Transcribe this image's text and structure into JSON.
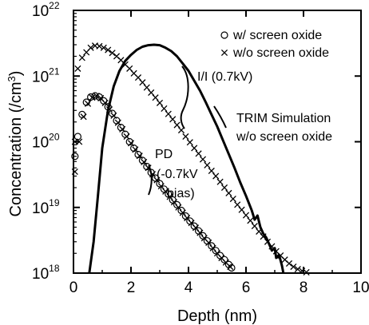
{
  "chart_data": {
    "type": "scatter",
    "title": "",
    "xlabel": "Depth (nm)",
    "ylabel_parts": {
      "main": "Concentration (/cm",
      "sup": "3",
      "close": ")"
    },
    "xlim": [
      0,
      10
    ],
    "ylim": [
      1e+18,
      1e+22
    ],
    "yscale": "log",
    "grid": false,
    "legend_placement": "top-right",
    "x_ticks": [
      "0",
      "2",
      "4",
      "6",
      "8",
      "10"
    ],
    "y_ticks": [
      {
        "base": "10",
        "exp": "18",
        "value": 1e+18
      },
      {
        "base": "10",
        "exp": "19",
        "value": 1e+19
      },
      {
        "base": "10",
        "exp": "20",
        "value": 1e+20
      },
      {
        "base": "10",
        "exp": "21",
        "value": 1e+21
      },
      {
        "base": "10",
        "exp": "22",
        "value": 1e+22
      }
    ],
    "legend": [
      {
        "marker": "o",
        "label": "w/ screen oxide"
      },
      {
        "marker": "x",
        "label": "w/o screen oxide"
      }
    ],
    "annotations": [
      {
        "text": "I/I (0.7kV)"
      },
      {
        "text": "TRIM Simulation"
      },
      {
        "text": "w/o screen oxide"
      },
      {
        "text": "PD"
      },
      {
        "text": "(-0.7kV"
      },
      {
        "text": "bias)"
      }
    ],
    "series": [
      {
        "name": "w/ screen oxide",
        "marker": "o",
        "group": "PD",
        "points": [
          [
            0.05,
            6e+19
          ],
          [
            0.15,
            1.2e+20
          ],
          [
            0.3,
            2.6e+20
          ],
          [
            0.45,
            4e+20
          ],
          [
            0.6,
            4.8e+20
          ],
          [
            0.75,
            5e+20
          ],
          [
            0.9,
            4.8e+20
          ],
          [
            1.05,
            4.2e+20
          ],
          [
            1.2,
            3.4e+20
          ],
          [
            1.35,
            2.7e+20
          ],
          [
            1.5,
            2.1e+20
          ],
          [
            1.65,
            1.65e+20
          ],
          [
            1.8,
            1.3e+20
          ],
          [
            1.95,
            1e+20
          ],
          [
            2.1,
            8e+19
          ],
          [
            2.25,
            6.4e+19
          ],
          [
            2.4,
            5.2e+19
          ],
          [
            2.55,
            4.2e+19
          ],
          [
            2.7,
            3.4e+19
          ],
          [
            2.85,
            2.8e+19
          ],
          [
            3.0,
            2.3e+19
          ],
          [
            3.15,
            1.9e+19
          ],
          [
            3.3,
            1.6e+19
          ],
          [
            3.45,
            1.3e+19
          ],
          [
            3.6,
            1.1e+19
          ],
          [
            3.75,
            9e+18
          ],
          [
            3.9,
            7.4e+18
          ],
          [
            4.05,
            6.2e+18
          ],
          [
            4.2,
            5.2e+18
          ],
          [
            4.35,
            4.4e+18
          ],
          [
            4.5,
            3.7e+18
          ],
          [
            4.65,
            3.1e+18
          ],
          [
            4.8,
            2.6e+18
          ],
          [
            4.95,
            2.2e+18
          ],
          [
            5.1,
            1.85e+18
          ],
          [
            5.25,
            1.6e+18
          ],
          [
            5.4,
            1.35e+18
          ],
          [
            5.5,
            1.2e+18
          ]
        ]
      },
      {
        "name": "w/o screen oxide",
        "marker": "x",
        "group": "PD",
        "points": [
          [
            0.05,
            3.5e+19
          ],
          [
            0.2,
            1e+20
          ],
          [
            0.35,
            2.4e+20
          ],
          [
            0.5,
            3.8e+20
          ],
          [
            0.65,
            4.7e+20
          ],
          [
            0.8,
            5e+20
          ],
          [
            0.95,
            4.6e+20
          ],
          [
            1.1,
            3.9e+20
          ],
          [
            1.25,
            3.1e+20
          ],
          [
            1.4,
            2.5e+20
          ],
          [
            1.55,
            1.95e+20
          ],
          [
            1.7,
            1.55e+20
          ],
          [
            1.85,
            1.2e+20
          ],
          [
            2.0,
            9.5e+19
          ],
          [
            2.15,
            7.6e+19
          ],
          [
            2.3,
            6.1e+19
          ],
          [
            2.45,
            4.9e+19
          ],
          [
            2.6,
            4e+19
          ],
          [
            2.75,
            3.2e+19
          ],
          [
            2.9,
            2.6e+19
          ],
          [
            3.05,
            2.1e+19
          ],
          [
            3.2,
            1.75e+19
          ],
          [
            3.35,
            1.45e+19
          ],
          [
            3.5,
            1.2e+19
          ],
          [
            3.65,
            1e+19
          ],
          [
            3.8,
            8.3e+18
          ],
          [
            3.95,
            6.9e+18
          ],
          [
            4.1,
            5.8e+18
          ],
          [
            4.25,
            4.9e+18
          ],
          [
            4.4,
            4.1e+18
          ],
          [
            4.55,
            3.4e+18
          ],
          [
            4.7,
            2.9e+18
          ],
          [
            4.85,
            2.4e+18
          ],
          [
            5.0,
            2e+18
          ],
          [
            5.15,
            1.7e+18
          ],
          [
            5.3,
            1.45e+18
          ],
          [
            5.45,
            1.25e+18
          ]
        ]
      },
      {
        "name": "w/o screen oxide",
        "marker": "x",
        "group": "I/I (0.7kV)",
        "points": [
          [
            0.05,
            1e+20
          ],
          [
            0.15,
            1.3e+21
          ],
          [
            0.3,
            1.9e+21
          ],
          [
            0.45,
            2.3e+21
          ],
          [
            0.6,
            2.7e+21
          ],
          [
            0.75,
            2.9e+21
          ],
          [
            0.9,
            2.85e+21
          ],
          [
            1.05,
            2.7e+21
          ],
          [
            1.2,
            2.5e+21
          ],
          [
            1.35,
            2.25e+21
          ],
          [
            1.5,
            2e+21
          ],
          [
            1.65,
            1.75e+21
          ],
          [
            1.8,
            1.5e+21
          ],
          [
            1.95,
            1.3e+21
          ],
          [
            2.1,
            1.1e+21
          ],
          [
            2.25,
            9.5e+20
          ],
          [
            2.4,
            8e+20
          ],
          [
            2.55,
            6.7e+20
          ],
          [
            2.7,
            5.6e+20
          ],
          [
            2.85,
            4.7e+20
          ],
          [
            3.0,
            3.9e+20
          ],
          [
            3.15,
            3.2e+20
          ],
          [
            3.3,
            2.65e+20
          ],
          [
            3.45,
            2.2e+20
          ],
          [
            3.6,
            1.8e+20
          ],
          [
            3.75,
            1.5e+20
          ],
          [
            3.9,
            1.2e+20
          ],
          [
            4.05,
            9.8e+19
          ],
          [
            4.2,
            8e+19
          ],
          [
            4.35,
            6.6e+19
          ],
          [
            4.5,
            5.4e+19
          ],
          [
            4.65,
            4.4e+19
          ],
          [
            4.8,
            3.6e+19
          ],
          [
            4.95,
            3e+19
          ],
          [
            5.1,
            2.45e+19
          ],
          [
            5.25,
            2e+19
          ],
          [
            5.4,
            1.65e+19
          ],
          [
            5.55,
            1.35e+19
          ],
          [
            5.7,
            1.1e+19
          ],
          [
            5.85,
            9.2e+18
          ],
          [
            6.0,
            7.6e+18
          ],
          [
            6.15,
            6.3e+18
          ],
          [
            6.3,
            5.2e+18
          ],
          [
            6.45,
            4.3e+18
          ],
          [
            6.6,
            3.6e+18
          ],
          [
            6.75,
            3e+18
          ],
          [
            6.9,
            2.55e+18
          ],
          [
            7.05,
            2.15e+18
          ],
          [
            7.2,
            1.85e+18
          ],
          [
            7.35,
            1.6e+18
          ],
          [
            7.5,
            1.4e+18
          ],
          [
            7.65,
            1.25e+18
          ],
          [
            7.8,
            1.15e+18
          ],
          [
            7.95,
            1.08e+18
          ],
          [
            8.1,
            1.03e+18
          ]
        ]
      },
      {
        "name": "TRIM Simulation w/o screen oxide",
        "marker": "line",
        "points": [
          [
            0.55,
            1e+18
          ],
          [
            0.7,
            3e+18
          ],
          [
            0.85,
            1.5e+19
          ],
          [
            1.0,
            8e+19
          ],
          [
            1.2,
            3e+20
          ],
          [
            1.4,
            7e+20
          ],
          [
            1.6,
            1.2e+21
          ],
          [
            1.8,
            1.7e+21
          ],
          [
            2.0,
            2.1e+21
          ],
          [
            2.2,
            2.5e+21
          ],
          [
            2.4,
            2.8e+21
          ],
          [
            2.6,
            2.95e+21
          ],
          [
            2.8,
            3e+21
          ],
          [
            3.0,
            2.95e+21
          ],
          [
            3.2,
            2.7e+21
          ],
          [
            3.4,
            2.4e+21
          ],
          [
            3.6,
            2e+21
          ],
          [
            3.8,
            1.55e+21
          ],
          [
            4.0,
            1.2e+21
          ],
          [
            4.2,
            8.5e+20
          ],
          [
            4.4,
            6e+20
          ],
          [
            4.6,
            4e+20
          ],
          [
            4.8,
            2.6e+20
          ],
          [
            5.0,
            1.7e+20
          ],
          [
            5.2,
            1.05e+20
          ],
          [
            5.4,
            6.5e+19
          ],
          [
            5.6,
            4e+19
          ],
          [
            5.8,
            2.4e+19
          ],
          [
            6.0,
            1.5e+19
          ],
          [
            6.2,
            9e+18
          ],
          [
            6.3,
            6.5e+18
          ],
          [
            6.4,
            7.5e+18
          ],
          [
            6.5,
            5e+18
          ],
          [
            6.6,
            4e+18
          ],
          [
            6.7,
            3.5e+18
          ],
          [
            6.8,
            2.8e+18
          ],
          [
            6.9,
            2.2e+18
          ],
          [
            7.0,
            2.4e+18
          ],
          [
            7.05,
            1.7e+18
          ],
          [
            7.15,
            1.9e+18
          ],
          [
            7.25,
            1.3e+18
          ],
          [
            7.3,
            1e+18
          ]
        ]
      }
    ]
  }
}
